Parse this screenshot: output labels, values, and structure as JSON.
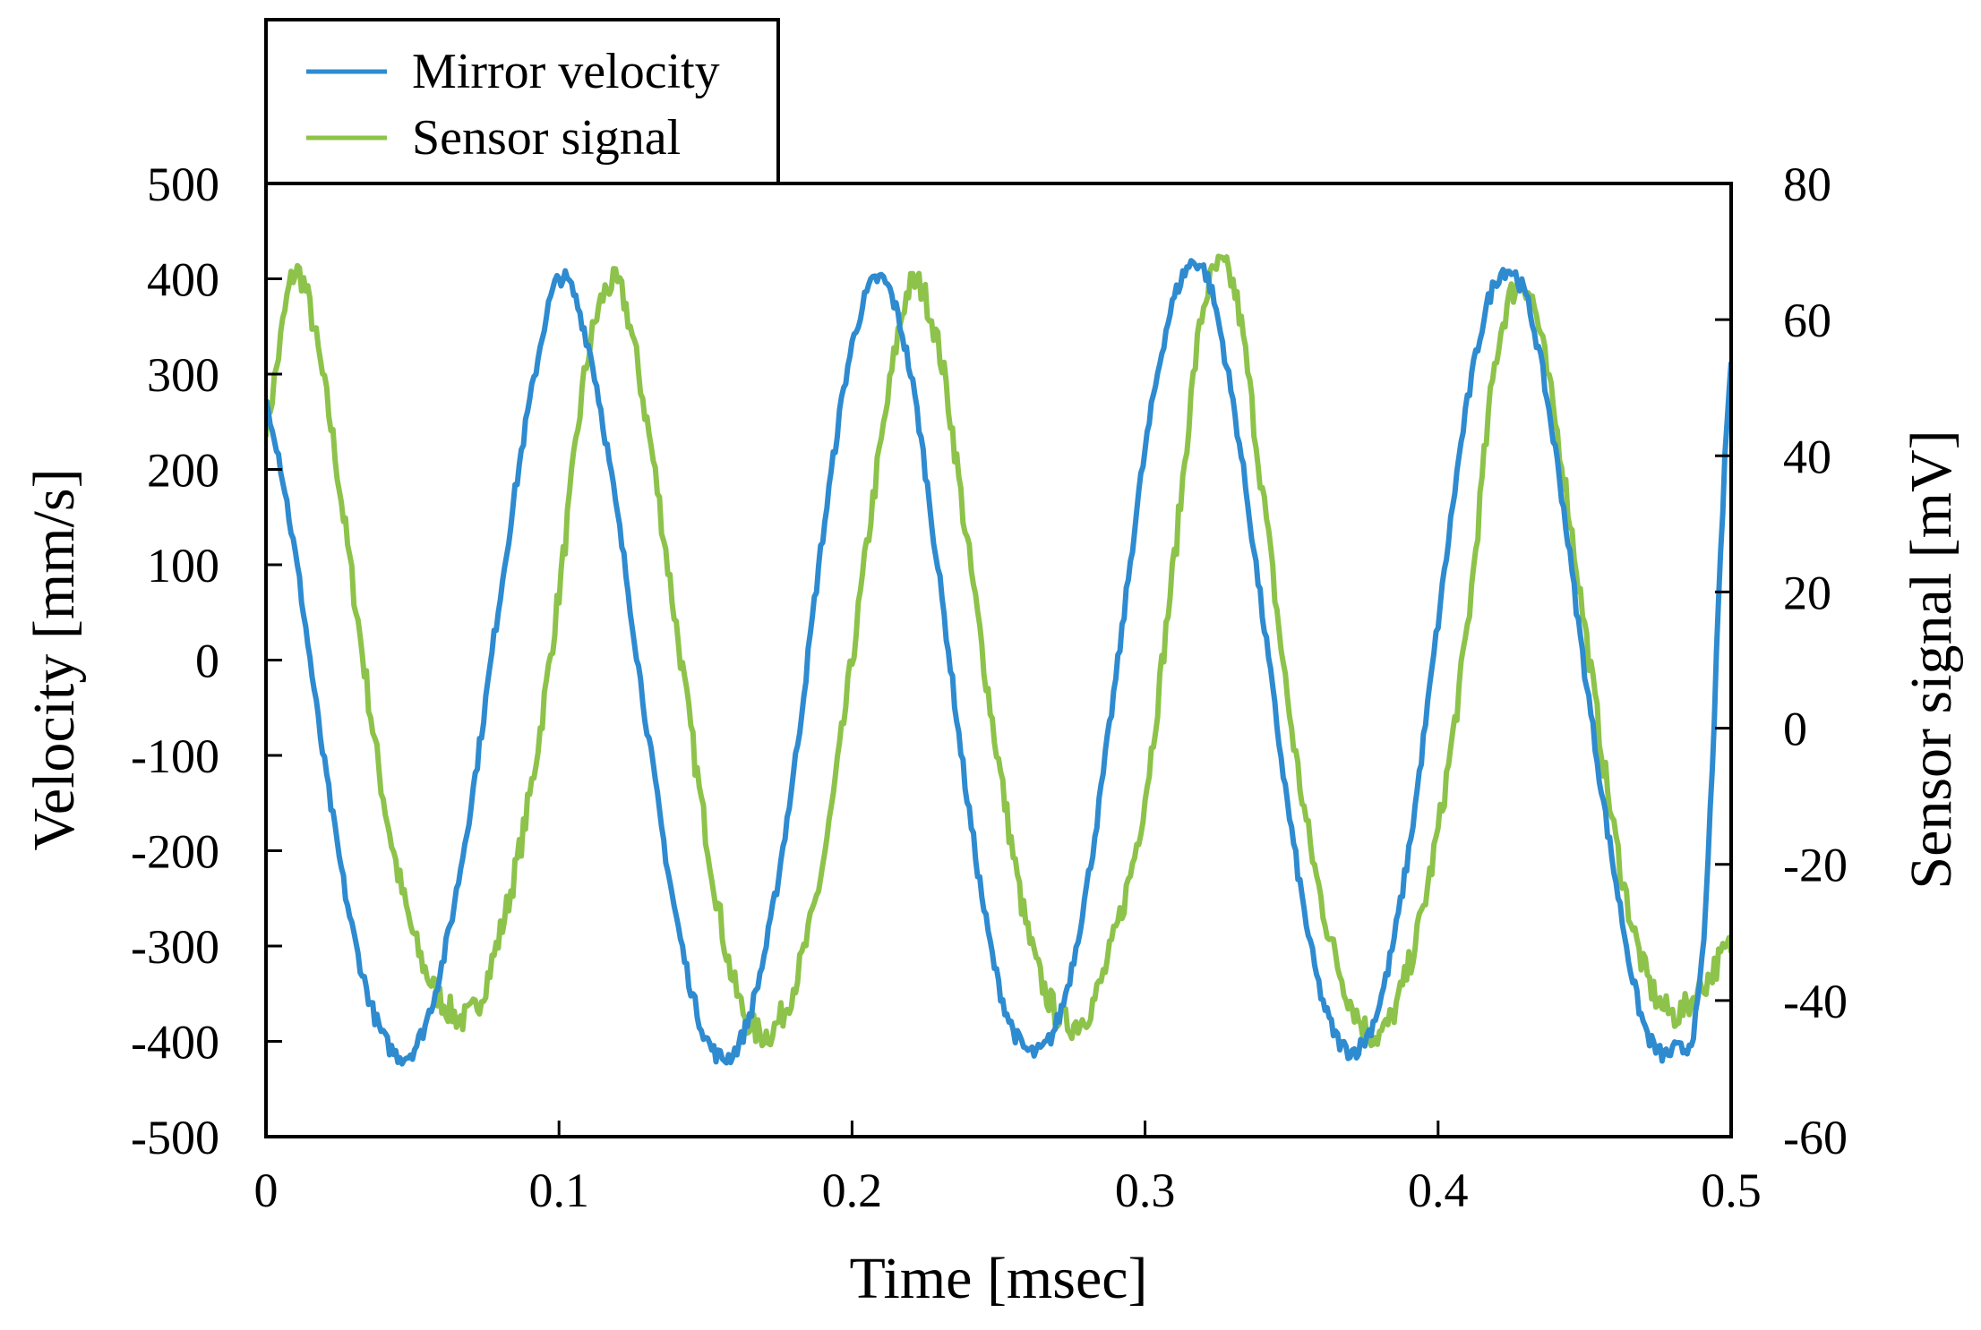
{
  "chart_data": {
    "type": "line",
    "title": "",
    "xlabel": "Time [msec]",
    "ylabel": "Velocity [mm/s]",
    "y2label": "Sensor signal [mV]",
    "xlim": [
      0,
      0.5
    ],
    "ylim": [
      -500,
      500
    ],
    "y2lim": [
      -60,
      80
    ],
    "x_ticks": [
      0,
      0.1,
      0.2,
      0.3,
      0.4,
      0.5
    ],
    "x_tick_labels": [
      "0",
      "0.1",
      "0.2",
      "0.3",
      "0.4",
      "0.5"
    ],
    "y_ticks": [
      -500,
      -400,
      -300,
      -200,
      -100,
      0,
      100,
      200,
      300,
      400,
      500
    ],
    "y_tick_labels": [
      "-500",
      "-400",
      "-300",
      "-200",
      "-100",
      "0",
      "100",
      "200",
      "300",
      "400",
      "500"
    ],
    "y2_ticks": [
      -60,
      -40,
      -20,
      0,
      20,
      40,
      60,
      80
    ],
    "y2_tick_labels": [
      "-60",
      "-40",
      "-20",
      "0",
      "20",
      "40",
      "60",
      "80"
    ],
    "grid": false,
    "legend_position": "top-left, above plot",
    "series": [
      {
        "name": "Mirror velocity",
        "axis": "left",
        "color": "#2e8bd0",
        "x": [
          0,
          0.01,
          0.02,
          0.03,
          0.04,
          0.05,
          0.06,
          0.07,
          0.08,
          0.09,
          0.1,
          0.11,
          0.12,
          0.13,
          0.14,
          0.15,
          0.16,
          0.17,
          0.18,
          0.19,
          0.2,
          0.21,
          0.22,
          0.23,
          0.24,
          0.25,
          0.26,
          0.27,
          0.28,
          0.29,
          0.3,
          0.31,
          0.32,
          0.33,
          0.34,
          0.35,
          0.36,
          0.37,
          0.38,
          0.39,
          0.4,
          0.41,
          0.42,
          0.43,
          0.44,
          0.45,
          0.46,
          0.47,
          0.48,
          0.49,
          0.5
        ],
        "values": [
          270,
          110,
          -110,
          -290,
          -395,
          -410,
          -320,
          -150,
          70,
          270,
          400,
          330,
          150,
          -70,
          -270,
          -395,
          -410,
          -310,
          -120,
          130,
          330,
          400,
          300,
          80,
          -160,
          -340,
          -410,
          -380,
          -240,
          -20,
          220,
          380,
          410,
          270,
          50,
          -180,
          -350,
          -410,
          -360,
          -200,
          40,
          270,
          400,
          380,
          220,
          -10,
          -220,
          -380,
          -410,
          -320,
          310
        ]
      },
      {
        "name": "Sensor signal",
        "axis": "right",
        "color": "#8dc34a",
        "x": [
          0,
          0.01,
          0.02,
          0.03,
          0.04,
          0.05,
          0.06,
          0.07,
          0.08,
          0.09,
          0.1,
          0.11,
          0.12,
          0.13,
          0.14,
          0.15,
          0.16,
          0.17,
          0.18,
          0.19,
          0.2,
          0.21,
          0.22,
          0.23,
          0.24,
          0.25,
          0.26,
          0.27,
          0.28,
          0.29,
          0.3,
          0.31,
          0.32,
          0.33,
          0.34,
          0.35,
          0.36,
          0.37,
          0.38,
          0.39,
          0.4,
          0.41,
          0.42,
          0.43,
          0.44,
          0.45,
          0.46,
          0.47,
          0.48,
          0.49,
          0.5
        ],
        "values": [
          45,
          67,
          50,
          20,
          -10,
          -30,
          -40,
          -42,
          -30,
          -10,
          20,
          55,
          65,
          45,
          15,
          -15,
          -38,
          -45,
          -38,
          -20,
          10,
          42,
          65,
          55,
          25,
          -5,
          -30,
          -42,
          -42,
          -30,
          -10,
          25,
          62,
          65,
          35,
          0,
          -25,
          -40,
          -45,
          -35,
          -15,
          15,
          55,
          65,
          45,
          15,
          -15,
          -35,
          -42,
          -38,
          -32
        ]
      }
    ]
  }
}
